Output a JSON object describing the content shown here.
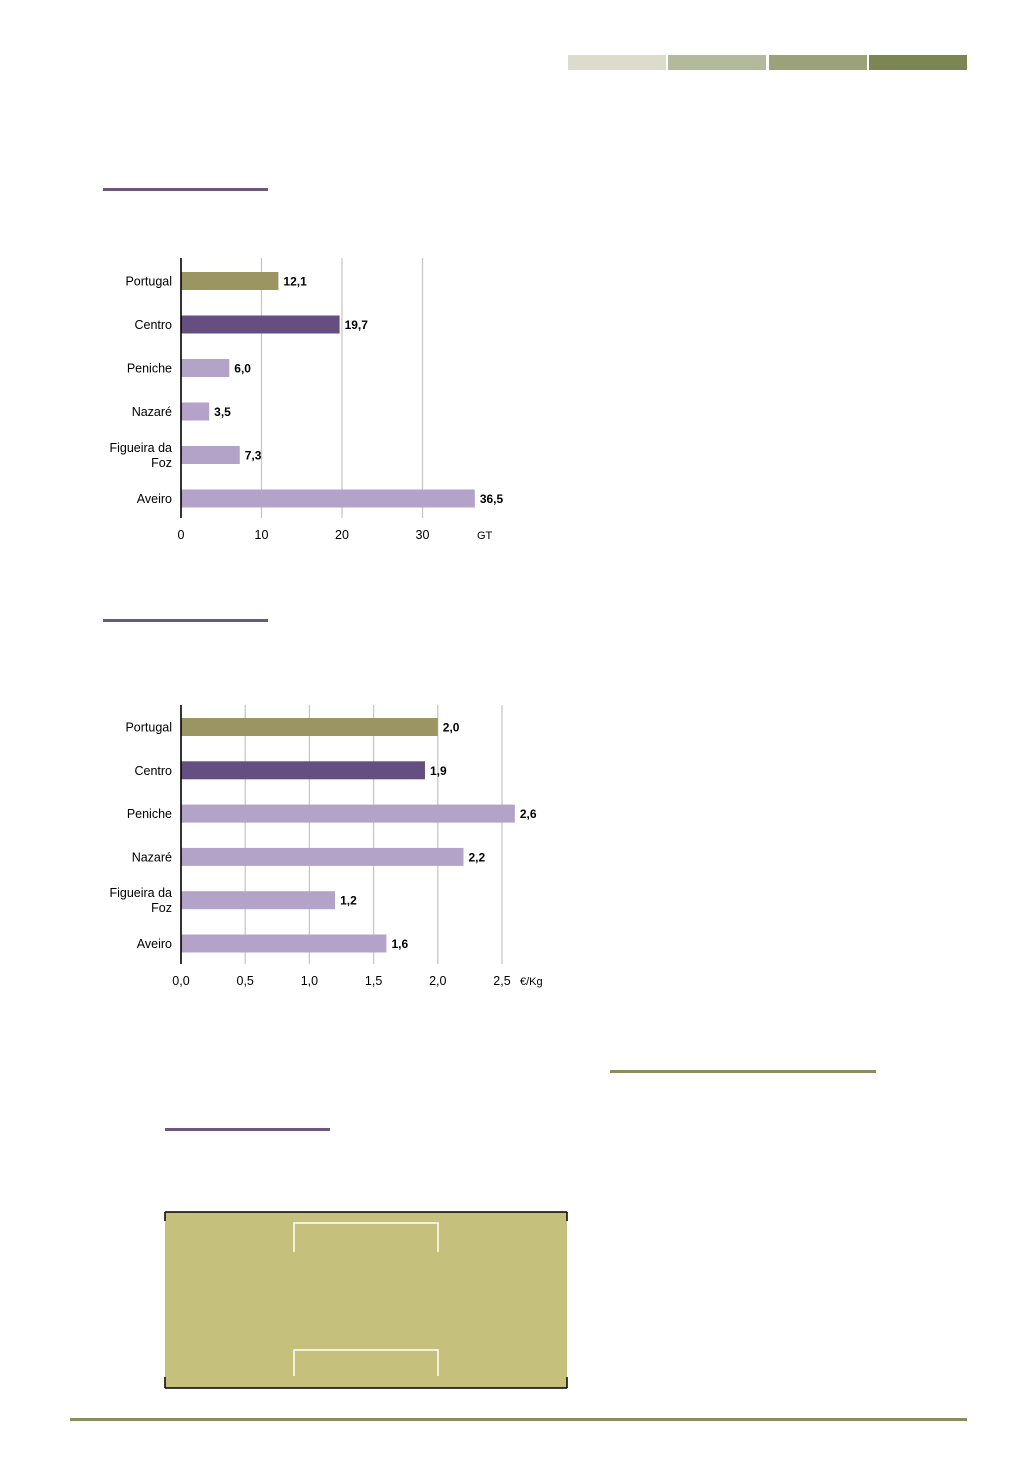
{
  "header_bar": {
    "segment_colors": [
      "#dcdccc",
      "#b3b99b",
      "#9ba27a",
      "#7b8652"
    ]
  },
  "colors": {
    "portugal_bar": "#9b9563",
    "centro_bar": "#654e80",
    "local_bar": "#b4a3c8",
    "section_rule_purple": "#6c587f",
    "section_rule_olive": "#8c8d5e",
    "panel_fill": "#c6c07d",
    "gridline": "#c8c8c8"
  },
  "chart_data": [
    {
      "type": "bar",
      "orientation": "horizontal",
      "categories": [
        "Portugal",
        "Centro",
        "Peniche",
        "Nazaré",
        "Figueira da Foz",
        "Aveiro"
      ],
      "category_lines": [
        [
          "Portugal"
        ],
        [
          "Centro"
        ],
        [
          "Peniche"
        ],
        [
          "Nazaré"
        ],
        [
          "Figueira da",
          "Foz"
        ],
        [
          "Aveiro"
        ]
      ],
      "values": [
        12.1,
        19.7,
        6.0,
        3.5,
        7.3,
        36.5
      ],
      "value_labels": [
        "12,1",
        "19,7",
        "6,0",
        "3,5",
        "7,3",
        "36,5"
      ],
      "bar_colors": [
        "#9b9563",
        "#654e80",
        "#b4a3c8",
        "#b4a3c8",
        "#b4a3c8",
        "#b4a3c8"
      ],
      "xlim": [
        0,
        36.5
      ],
      "xticks": [
        0,
        10,
        20,
        30
      ],
      "xtick_labels": [
        "0",
        "10",
        "20",
        "30"
      ],
      "unit_label": "GT",
      "grid": true
    },
    {
      "type": "bar",
      "orientation": "horizontal",
      "categories": [
        "Portugal",
        "Centro",
        "Peniche",
        "Nazaré",
        "Figueira da Foz",
        "Aveiro"
      ],
      "category_lines": [
        [
          "Portugal"
        ],
        [
          "Centro"
        ],
        [
          "Peniche"
        ],
        [
          "Nazaré"
        ],
        [
          "Figueira da",
          "Foz"
        ],
        [
          "Aveiro"
        ]
      ],
      "values": [
        2.0,
        1.9,
        2.6,
        2.2,
        1.2,
        1.6
      ],
      "value_labels": [
        "2,0",
        "1,9",
        "2,6",
        "2,2",
        "1,2",
        "1,6"
      ],
      "bar_colors": [
        "#9b9563",
        "#654e80",
        "#b4a3c8",
        "#b4a3c8",
        "#b4a3c8",
        "#b4a3c8"
      ],
      "xlim": [
        0,
        2.6
      ],
      "xticks": [
        0,
        0.5,
        1.0,
        1.5,
        2.0,
        2.5
      ],
      "xtick_labels": [
        "0,0",
        "0,5",
        "1,0",
        "1,5",
        "2,0",
        "2,5"
      ],
      "unit_label": "€/Kg",
      "grid": true
    }
  ]
}
